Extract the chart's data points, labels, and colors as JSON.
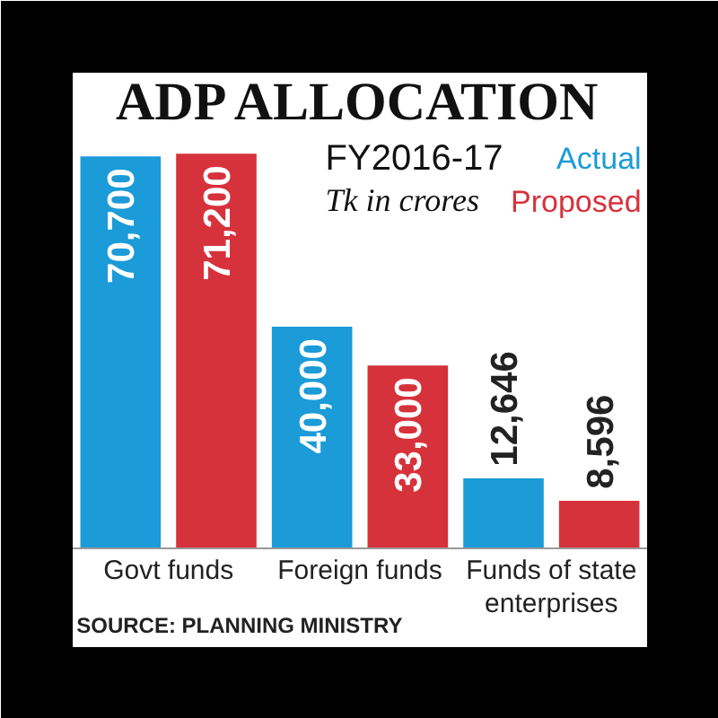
{
  "chart_data": {
    "type": "bar",
    "title": "ADP ALLOCATION",
    "subtitle": "FY2016-17",
    "annotations": [
      "Tk in crores",
      "SOURCE: PLANNING MINISTRY"
    ],
    "categories": [
      "Govt funds",
      "Foreign funds",
      "Funds of state enterprises"
    ],
    "series": [
      {
        "name": "Actual",
        "color": "#1b9bd7",
        "values": [
          70700,
          40000,
          12646
        ],
        "value_labels": [
          "70,700",
          "40,000",
          "12,646"
        ]
      },
      {
        "name": "Proposed",
        "color": "#d6323c",
        "values": [
          71200,
          33000,
          8596
        ],
        "value_labels": [
          "71,200",
          "33,000",
          "8,596"
        ]
      }
    ],
    "relative": false,
    "legend": "top right",
    "grid": false
  }
}
